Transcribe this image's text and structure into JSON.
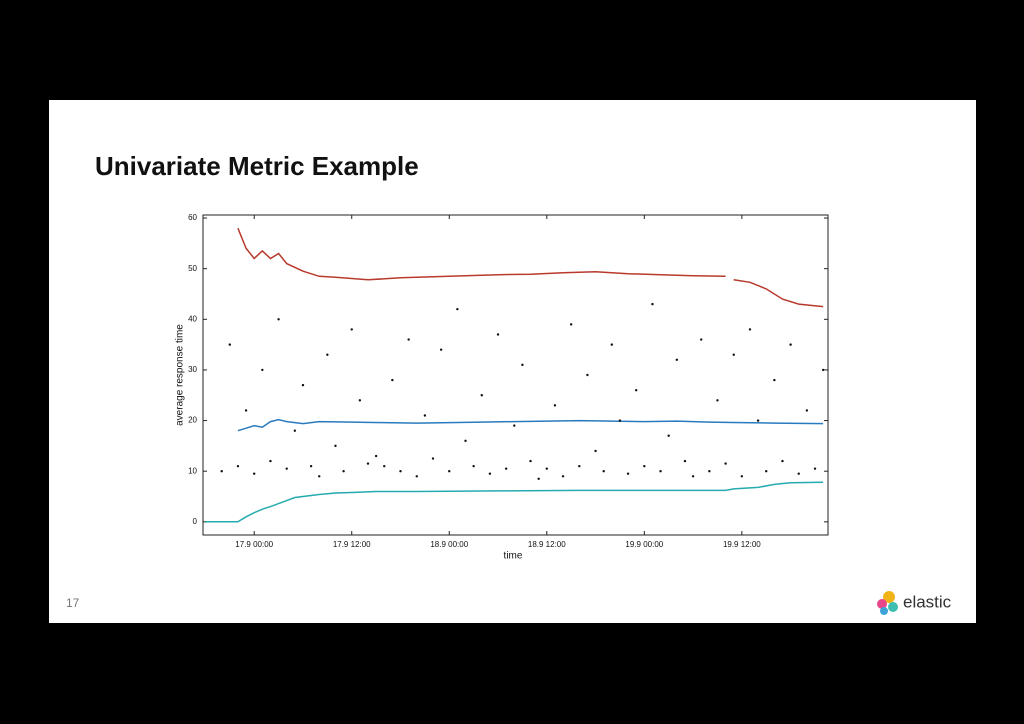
{
  "slide": {
    "page_number": "17",
    "logo": "elastic"
  },
  "chart_data": {
    "type": "line",
    "title": "Univariate Metric Example",
    "x_label": "time",
    "y_label": "average response time",
    "xlim": [
      -6.3,
      70.6
    ],
    "ylim": [
      -2.6,
      60.6
    ],
    "xticks": [
      {
        "value": 0,
        "label": "17.9 00:00"
      },
      {
        "value": 12,
        "label": "17.9 12:00"
      },
      {
        "value": 24,
        "label": "18.9 00:00"
      },
      {
        "value": 36,
        "label": "18.9 12:00"
      },
      {
        "value": 48,
        "label": "19.9 00:00"
      },
      {
        "value": 60,
        "label": "19.9 12:00"
      }
    ],
    "yticks": [
      0,
      10,
      20,
      30,
      40,
      50,
      60
    ],
    "series": [
      {
        "type": "line",
        "color": "#b83a2c",
        "x": [
          -2,
          -1,
          0,
          1,
          2,
          3,
          4,
          6,
          8,
          10,
          14,
          18,
          22,
          26,
          30,
          34,
          38,
          42,
          46,
          50,
          54,
          58,
          58.5,
          59,
          61,
          63,
          65,
          67,
          70
        ],
        "values": [
          58,
          54,
          52,
          53.5,
          52,
          53,
          51,
          49.5,
          48.5,
          48.3,
          47.8,
          48.2,
          48.4,
          48.6,
          48.8,
          48.9,
          49.2,
          49.4,
          49,
          48.8,
          48.6,
          48.5,
          null,
          47.8,
          47.3,
          46,
          44,
          43,
          42.5
        ]
      },
      {
        "type": "line",
        "color": "#2a7ac0",
        "x": [
          -2,
          -1,
          0,
          1,
          2,
          3,
          4,
          6,
          8,
          12,
          16,
          20,
          24,
          28,
          32,
          36,
          40,
          44,
          48,
          52,
          56,
          60,
          64,
          70
        ],
        "values": [
          18,
          18.5,
          19,
          18.7,
          19.8,
          20.2,
          19.8,
          19.4,
          19.8,
          19.7,
          19.6,
          19.5,
          19.6,
          19.7,
          19.8,
          19.9,
          20,
          19.9,
          19.8,
          19.9,
          19.7,
          19.6,
          19.5,
          19.4
        ]
      },
      {
        "type": "line",
        "color": "#25aab0",
        "x": [
          -6,
          -2,
          -1,
          0,
          1,
          2,
          3,
          4,
          5,
          6,
          8,
          10,
          12,
          15,
          20,
          30,
          40,
          50,
          58,
          59,
          62,
          64,
          66,
          70
        ],
        "values": [
          0,
          0,
          1,
          1.8,
          2.5,
          3,
          3.6,
          4.2,
          4.8,
          5,
          5.4,
          5.7,
          5.8,
          6,
          6,
          6.1,
          6.2,
          6.2,
          6.2,
          6.5,
          6.8,
          7.4,
          7.7,
          7.8
        ]
      },
      {
        "type": "scatter",
        "color": "#111111",
        "x": [
          -4,
          -3,
          -2,
          -1,
          0,
          1,
          2,
          3,
          4,
          5,
          6,
          7,
          8,
          9,
          10,
          11,
          12,
          13,
          14,
          15,
          16,
          17,
          18,
          19,
          20,
          21,
          22,
          23,
          24,
          25,
          26,
          27,
          28,
          29,
          30,
          31,
          32,
          33,
          34,
          35,
          36,
          37,
          38,
          39,
          40,
          41,
          42,
          43,
          44,
          45,
          46,
          47,
          48,
          49,
          50,
          51,
          52,
          53,
          54,
          55,
          56,
          57,
          58,
          59,
          60,
          61,
          62,
          63,
          64,
          65,
          66,
          67,
          68,
          69,
          70
        ],
        "values": [
          10,
          35,
          11,
          22,
          9.5,
          30,
          12,
          40,
          10.5,
          18,
          27,
          11,
          9,
          33,
          15,
          10,
          38,
          24,
          11.5,
          13,
          11,
          28,
          10,
          36,
          9,
          21,
          12.5,
          34,
          10,
          42,
          16,
          11,
          25,
          9.5,
          37,
          10.5,
          19,
          31,
          12,
          8.5,
          10.5,
          23,
          9,
          39,
          11,
          29,
          14,
          10,
          35,
          20,
          9.5,
          26,
          11,
          43,
          10,
          17,
          32,
          12,
          9,
          36,
          10,
          24,
          11.5,
          33,
          9,
          38,
          20,
          10,
          28,
          12,
          35,
          9.5,
          22,
          10.5,
          30
        ]
      }
    ]
  }
}
